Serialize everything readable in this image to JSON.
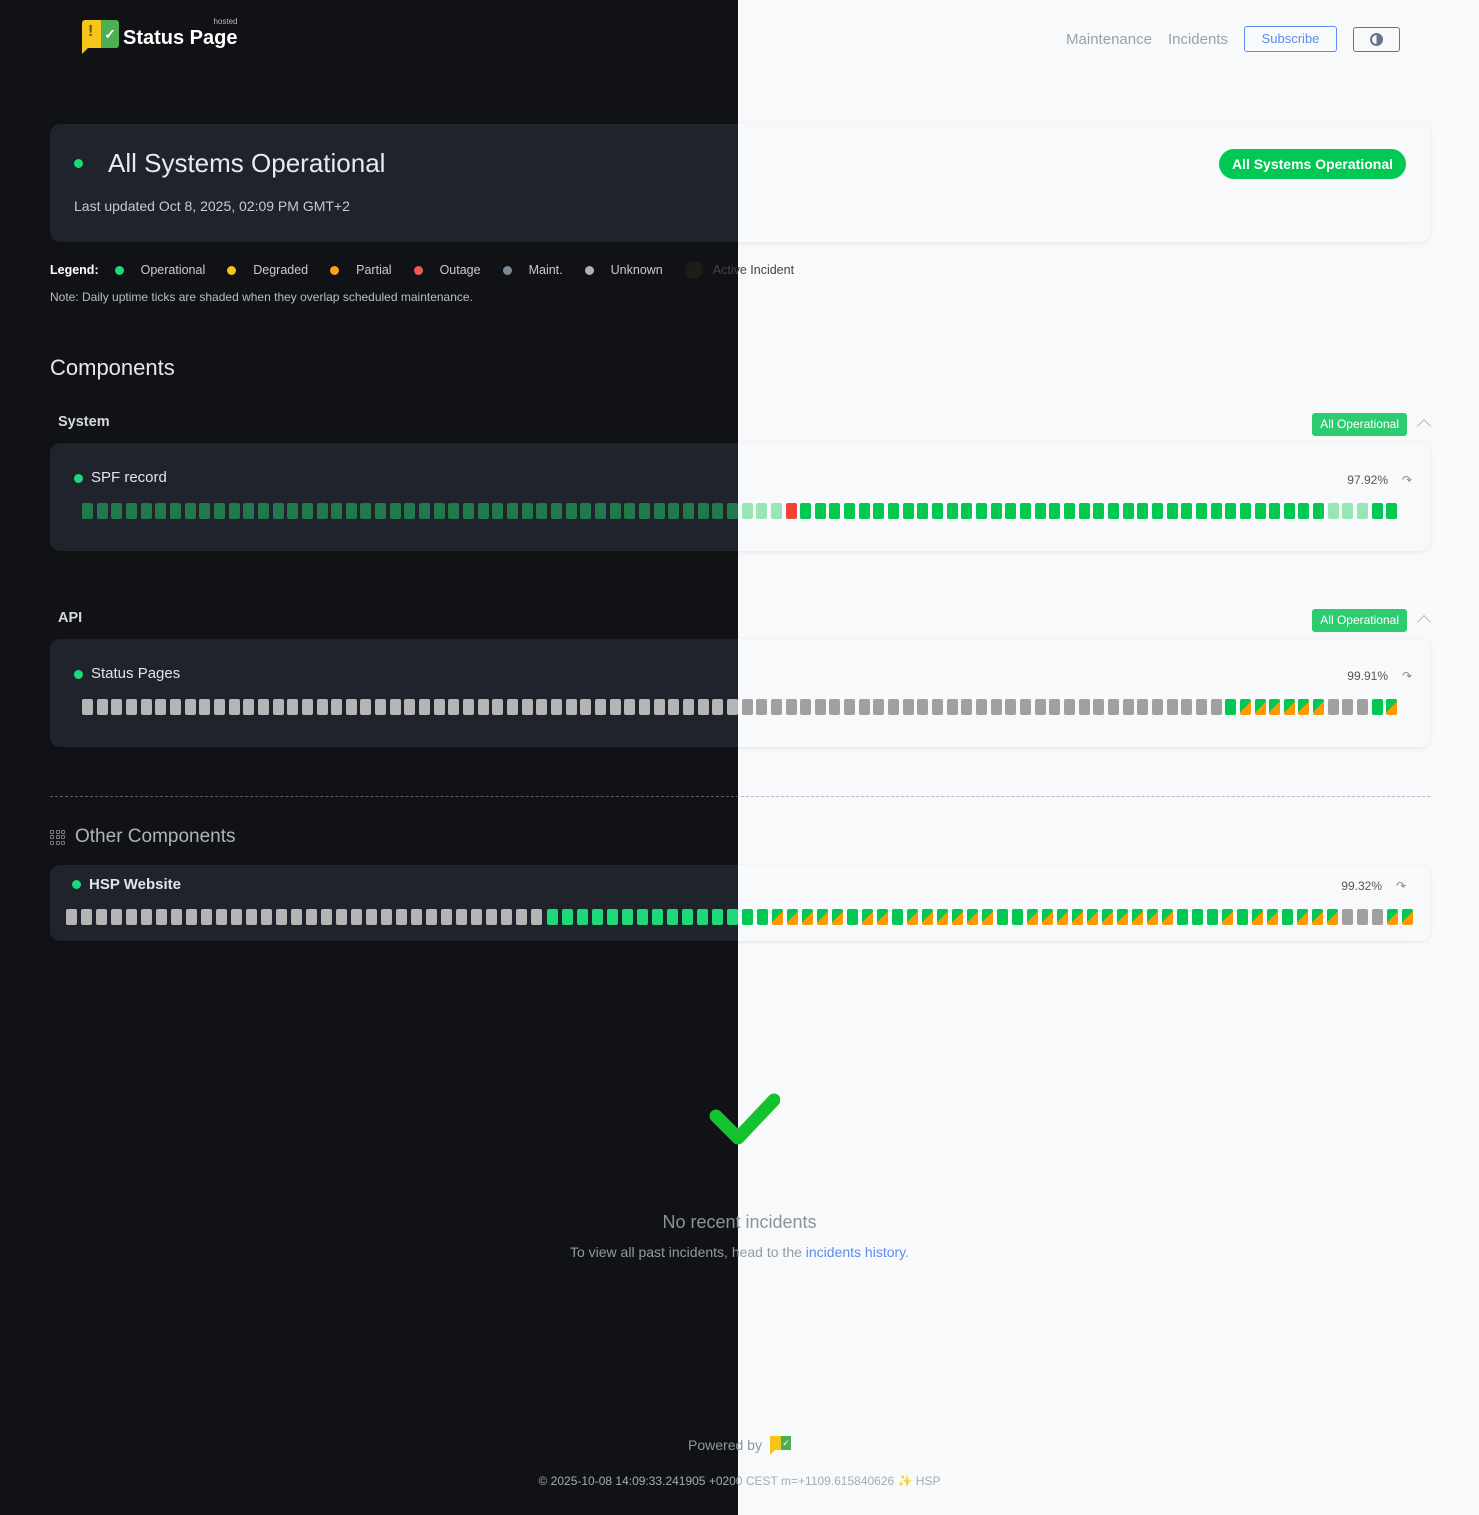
{
  "header": {
    "logo_text": "Status Page",
    "logo_badge": "hosted",
    "nav": [
      "Maintenance",
      "Incidents"
    ],
    "subscribe_label": "Subscribe",
    "theme_toggle_icon": "contrast-icon"
  },
  "status": {
    "title": "All Systems Operational",
    "last_updated": "Last updated Oct 8, 2025, 02:09 PM GMT+2",
    "pill": "All Systems Operational"
  },
  "legend": {
    "label": "Legend:",
    "items": [
      {
        "label": "Operational",
        "color": "#1ed97a"
      },
      {
        "label": "Degraded",
        "color": "#f5c518"
      },
      {
        "label": "Partial",
        "color": "#ff9f1a"
      },
      {
        "label": "Outage",
        "color": "#f44336"
      },
      {
        "label": "Maint.",
        "color": "#7a8a99"
      },
      {
        "label": "Unknown",
        "color": "#b0b0b0"
      },
      {
        "label": "Active Incident",
        "color": "#1e1c18"
      }
    ],
    "note": "Note: Daily uptime ticks are shaded when they overlap scheduled maintenance."
  },
  "components_title": "Components",
  "colors": {
    "dark": {
      "operational": "#1ed97a",
      "operational_maint": "#1e7a4c",
      "outage": "#f44336",
      "unknown": "#b5b5b5",
      "partial": "#ff9800"
    },
    "light": {
      "operational": "#00c853",
      "operational_maint": "#98e6b5",
      "outage": "#f44336",
      "unknown": "#a0a0a0",
      "partial": "#ff9800"
    }
  },
  "groups": [
    {
      "name": "System",
      "badge": "All Operational",
      "components": [
        {
          "name": "SPF record",
          "uptime": "97.92%",
          "days": [
            {
              "status": "operational_maint",
              "count": 48
            },
            {
              "status": "outage",
              "count": 1
            },
            {
              "status": "operational",
              "count": 36
            },
            {
              "status": "operational_maint",
              "count": 3
            },
            {
              "status": "operational",
              "count": 2
            }
          ]
        }
      ]
    },
    {
      "name": "API",
      "badge": "All Operational",
      "components": [
        {
          "name": "Status Pages",
          "uptime": "99.91%",
          "days": [
            {
              "status": "unknown",
              "count": 78
            },
            {
              "status": "operational",
              "count": 1
            },
            {
              "status": "partial",
              "count": 6
            },
            {
              "status": "unknown",
              "count": 3
            },
            {
              "status": "operational",
              "count": 1
            },
            {
              "status": "partial",
              "count": 1
            }
          ]
        }
      ]
    }
  ],
  "other": {
    "title": "Other Components",
    "components": [
      {
        "name": "HSP Website",
        "uptime": "99.32%",
        "days": [
          {
            "status": "unknown",
            "count": 32
          },
          {
            "status": "operational",
            "count": 15
          },
          {
            "status": "partial",
            "count": 5
          },
          {
            "status": "operational",
            "count": 1
          },
          {
            "status": "partial",
            "count": 2
          },
          {
            "status": "operational",
            "count": 1
          },
          {
            "status": "partial",
            "count": 6
          },
          {
            "status": "operational",
            "count": 2
          },
          {
            "status": "partial",
            "count": 10
          },
          {
            "status": "operational",
            "count": 3
          },
          {
            "status": "partial",
            "count": 1
          },
          {
            "status": "operational",
            "count": 1
          },
          {
            "status": "partial",
            "count": 2
          },
          {
            "status": "operational",
            "count": 1
          },
          {
            "status": "partial",
            "count": 3
          },
          {
            "status": "unknown",
            "count": 3
          },
          {
            "status": "partial",
            "count": 2
          }
        ]
      }
    ]
  },
  "incidents": {
    "title": "No recent incidents",
    "text": "To view all past incidents, head to the",
    "link": "incidents history",
    "suffix": "."
  },
  "footer": {
    "powered_by": "Powered by",
    "build": "© 2025-10-08 14:09:33.241905 +0200 CEST m=+1109.615840626 ✨ HSP"
  }
}
